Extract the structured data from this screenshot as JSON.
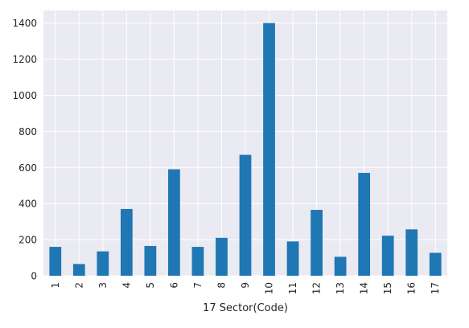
{
  "chart_data": {
    "type": "bar",
    "title": "",
    "xlabel": "17 Sector(Code)",
    "ylabel": "",
    "categories": [
      "1",
      "2",
      "3",
      "4",
      "5",
      "6",
      "7",
      "8",
      "9",
      "10",
      "11",
      "12",
      "13",
      "14",
      "15",
      "16",
      "17"
    ],
    "values": [
      160,
      65,
      135,
      370,
      165,
      590,
      160,
      210,
      670,
      1400,
      190,
      365,
      105,
      570,
      222,
      257,
      127
    ],
    "ylim": [
      0,
      1470
    ],
    "yticks": [
      0,
      200,
      400,
      600,
      800,
      1000,
      1200,
      1400
    ],
    "grid": true,
    "legend": "none",
    "colors": {
      "bar": "#1f77b4",
      "plot_background": "#eaeaf2",
      "grid": "#ffffff",
      "text": "#262626"
    }
  }
}
